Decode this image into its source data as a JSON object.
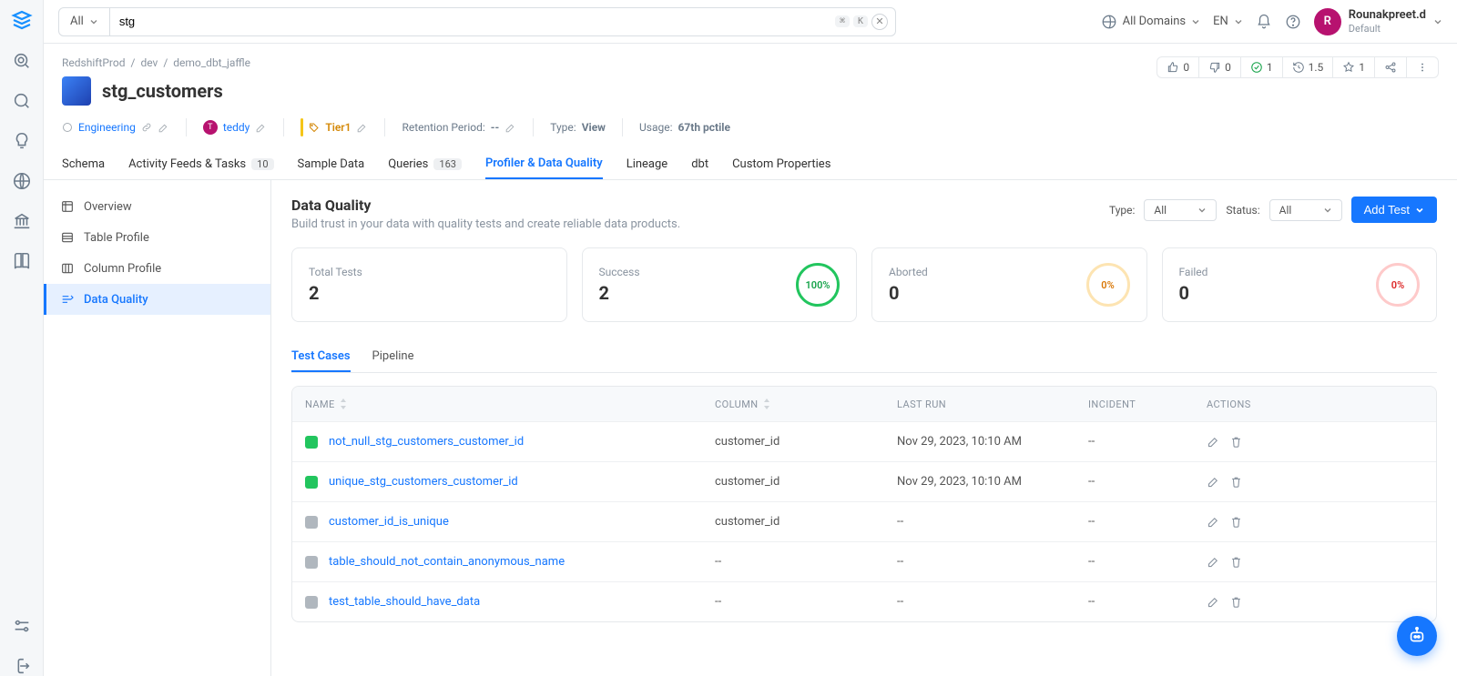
{
  "search": {
    "scope": "All",
    "value": "stg",
    "kbd1": "⌘",
    "kbd2": "K"
  },
  "topRight": {
    "domains": "All Domains",
    "lang": "EN",
    "user": {
      "initial": "R",
      "name": "Rounakpreet.d",
      "sub": "Default"
    }
  },
  "breadcrumb": [
    "RedshiftProd",
    "dev",
    "demo_dbt_jaffle"
  ],
  "entity": {
    "title": "stg_customers"
  },
  "headStats": {
    "up": "0",
    "down": "0",
    "runs": "1",
    "time": "1.5",
    "star": "1"
  },
  "meta": {
    "domain": "Engineering",
    "owner": "teddy",
    "tier": "Tier1",
    "retentionLabel": "Retention Period:",
    "retentionVal": "--",
    "typeLabel": "Type:",
    "typeVal": "View",
    "usageLabel": "Usage:",
    "usageVal": "67th pctile"
  },
  "tabs": [
    {
      "label": "Schema"
    },
    {
      "label": "Activity Feeds & Tasks",
      "badge": "10"
    },
    {
      "label": "Sample Data"
    },
    {
      "label": "Queries",
      "badge": "163"
    },
    {
      "label": "Profiler & Data Quality",
      "active": true
    },
    {
      "label": "Lineage"
    },
    {
      "label": "dbt"
    },
    {
      "label": "Custom Properties"
    }
  ],
  "side": [
    {
      "label": "Overview"
    },
    {
      "label": "Table Profile"
    },
    {
      "label": "Column Profile"
    },
    {
      "label": "Data Quality",
      "active": true
    }
  ],
  "dq": {
    "title": "Data Quality",
    "sub": "Build trust in your data with quality tests and create reliable data products.",
    "typeLabel": "Type:",
    "typeVal": "All",
    "statusLabel": "Status:",
    "statusVal": "All",
    "addBtn": "Add Test"
  },
  "stats": {
    "totalLabel": "Total Tests",
    "totalVal": "2",
    "successLabel": "Success",
    "successVal": "2",
    "successPct": "100%",
    "abortedLabel": "Aborted",
    "abortedVal": "0",
    "abortedPct": "0%",
    "failedLabel": "Failed",
    "failedVal": "0",
    "failedPct": "0%"
  },
  "subtabs": [
    {
      "label": "Test Cases",
      "active": true
    },
    {
      "label": "Pipeline"
    }
  ],
  "cols": {
    "name": "NAME",
    "column": "COLUMN",
    "lastRun": "LAST RUN",
    "incident": "INCIDENT",
    "actions": "ACTIONS"
  },
  "rows": [
    {
      "status": "green",
      "name": "not_null_stg_customers_customer_id",
      "column": "customer_id",
      "lastRun": "Nov 29, 2023, 10:10 AM",
      "incident": "--"
    },
    {
      "status": "green",
      "name": "unique_stg_customers_customer_id",
      "column": "customer_id",
      "lastRun": "Nov 29, 2023, 10:10 AM",
      "incident": "--"
    },
    {
      "status": "grey",
      "name": "customer_id_is_unique",
      "column": "customer_id",
      "lastRun": "--",
      "incident": "--"
    },
    {
      "status": "grey",
      "name": "table_should_not_contain_anonymous_name",
      "column": "--",
      "lastRun": "--",
      "incident": "--"
    },
    {
      "status": "grey",
      "name": "test_table_should_have_data",
      "column": "--",
      "lastRun": "--",
      "incident": "--"
    }
  ]
}
